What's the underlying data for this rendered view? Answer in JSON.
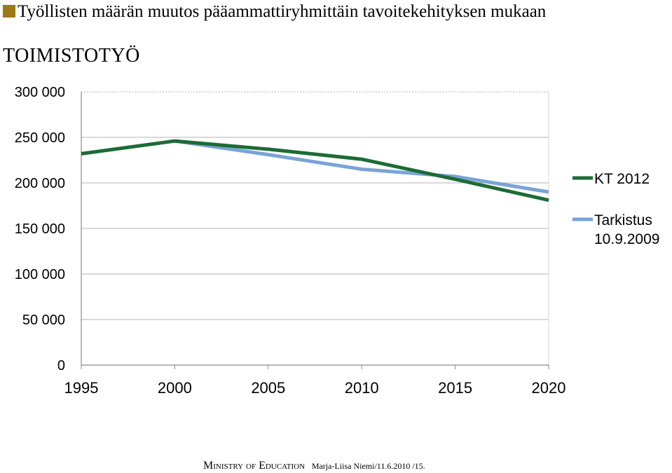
{
  "header": {
    "title": "Työllisten määrän muutos pääammattiryhmittäin tavoitekehityksen mukaan",
    "subtitle": "TOIMISTOTYÖ",
    "bullet_color": "#9c7a18"
  },
  "chart_data": {
    "type": "line",
    "title": "",
    "xlabel": "",
    "ylabel": "",
    "x": [
      1995,
      2000,
      2005,
      2010,
      2015,
      2020
    ],
    "x_tick_labels": [
      "1995",
      "2000",
      "2005",
      "2010",
      "2015",
      "2020"
    ],
    "ylim": [
      0,
      300000
    ],
    "y_ticks": [
      0,
      50000,
      100000,
      150000,
      200000,
      250000,
      300000
    ],
    "y_tick_labels": [
      "0",
      "50 000",
      "100 000",
      "150 000",
      "200 000",
      "250 000",
      "300 000"
    ],
    "grid": true,
    "legend_position": "right",
    "series": [
      {
        "name": "KT 2012",
        "name_lines": [
          "KT 2012"
        ],
        "color": "#1d6b35",
        "values": [
          232000,
          246000,
          237000,
          226000,
          204000,
          181000
        ]
      },
      {
        "name": "Tarkistus 10.9.2009",
        "name_lines": [
          "Tarkistus",
          "10.9.2009"
        ],
        "color": "#7aa3d6",
        "values": [
          232000,
          246000,
          231000,
          215000,
          207000,
          190000
        ]
      }
    ]
  },
  "footer": {
    "org": "Ministry of Education",
    "author": "Marja-Liisa Niemi/11.6.2010 /15."
  }
}
